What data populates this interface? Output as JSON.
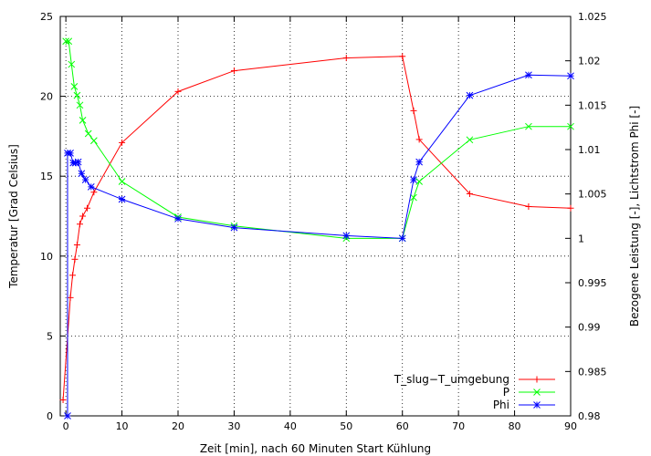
{
  "chart_data": {
    "type": "line",
    "title": "",
    "xlabel": "Zeit [min], nach 60 Minuten Start Kühlung",
    "ylabel": "Temperatur [Grad Celsius]",
    "y2label": "Bezogene Leistung [-], Lichtstrom Phi [-]",
    "xlim": [
      -1,
      90
    ],
    "ylim": [
      0,
      25
    ],
    "y2lim": [
      0.98,
      1.025
    ],
    "x_ticks": [
      0,
      10,
      20,
      30,
      40,
      50,
      60,
      70,
      80,
      90
    ],
    "y_ticks": [
      0,
      5,
      10,
      15,
      20,
      25
    ],
    "y2_ticks": [
      "0.98",
      "0.985",
      "0.99",
      "0.995",
      "1",
      "1.005",
      "1.01",
      "1.015",
      "1.02",
      "1.025"
    ],
    "grid": true,
    "legend_position": "bottom-right",
    "series": [
      {
        "name": "T_slug−T_umgebung",
        "axis": "left",
        "color": "#ff0000",
        "marker": "plus",
        "x": [
          -0.5,
          0.8,
          1.2,
          1.6,
          2.0,
          2.5,
          3.0,
          3.8,
          5.0,
          10,
          20,
          30,
          50,
          60,
          62,
          63,
          72,
          82.5,
          90
        ],
        "y": [
          1.0,
          7.4,
          8.8,
          9.8,
          10.7,
          12.0,
          12.5,
          13.0,
          14.0,
          17.1,
          20.3,
          21.6,
          22.4,
          22.5,
          19.1,
          17.3,
          13.9,
          13.1,
          13.0
        ]
      },
      {
        "name": "P",
        "axis": "right",
        "color": "#00ff00",
        "marker": "x",
        "x": [
          0,
          0.5,
          1.0,
          1.5,
          2.0,
          2.5,
          3.0,
          4.0,
          5.0,
          10,
          20,
          30,
          50,
          60,
          62,
          63,
          72,
          82.5,
          90
        ],
        "y": [
          1.0222,
          1.0222,
          1.0196,
          1.0171,
          1.0161,
          1.015,
          1.0133,
          1.0118,
          1.011,
          1.0064,
          1.0024,
          1.0014,
          1.0,
          1.0,
          1.0046,
          1.0064,
          1.0111,
          1.0126,
          1.0126
        ]
      },
      {
        "name": "Phi",
        "axis": "right",
        "color": "#0000ff",
        "marker": "star",
        "x": [
          0.3,
          0.3,
          0.8,
          1.3,
          1.7,
          2.2,
          2.8,
          3.5,
          4.5,
          10,
          20,
          30,
          50,
          60,
          62,
          63,
          72,
          82.5,
          90
        ],
        "y": [
          0.98,
          1.0096,
          1.0096,
          1.0085,
          1.0085,
          1.0086,
          1.0073,
          1.0066,
          1.0058,
          1.0044,
          1.0022,
          1.0012,
          1.0003,
          1.0,
          1.0066,
          1.0086,
          1.0161,
          1.0184,
          1.0183
        ]
      }
    ]
  }
}
